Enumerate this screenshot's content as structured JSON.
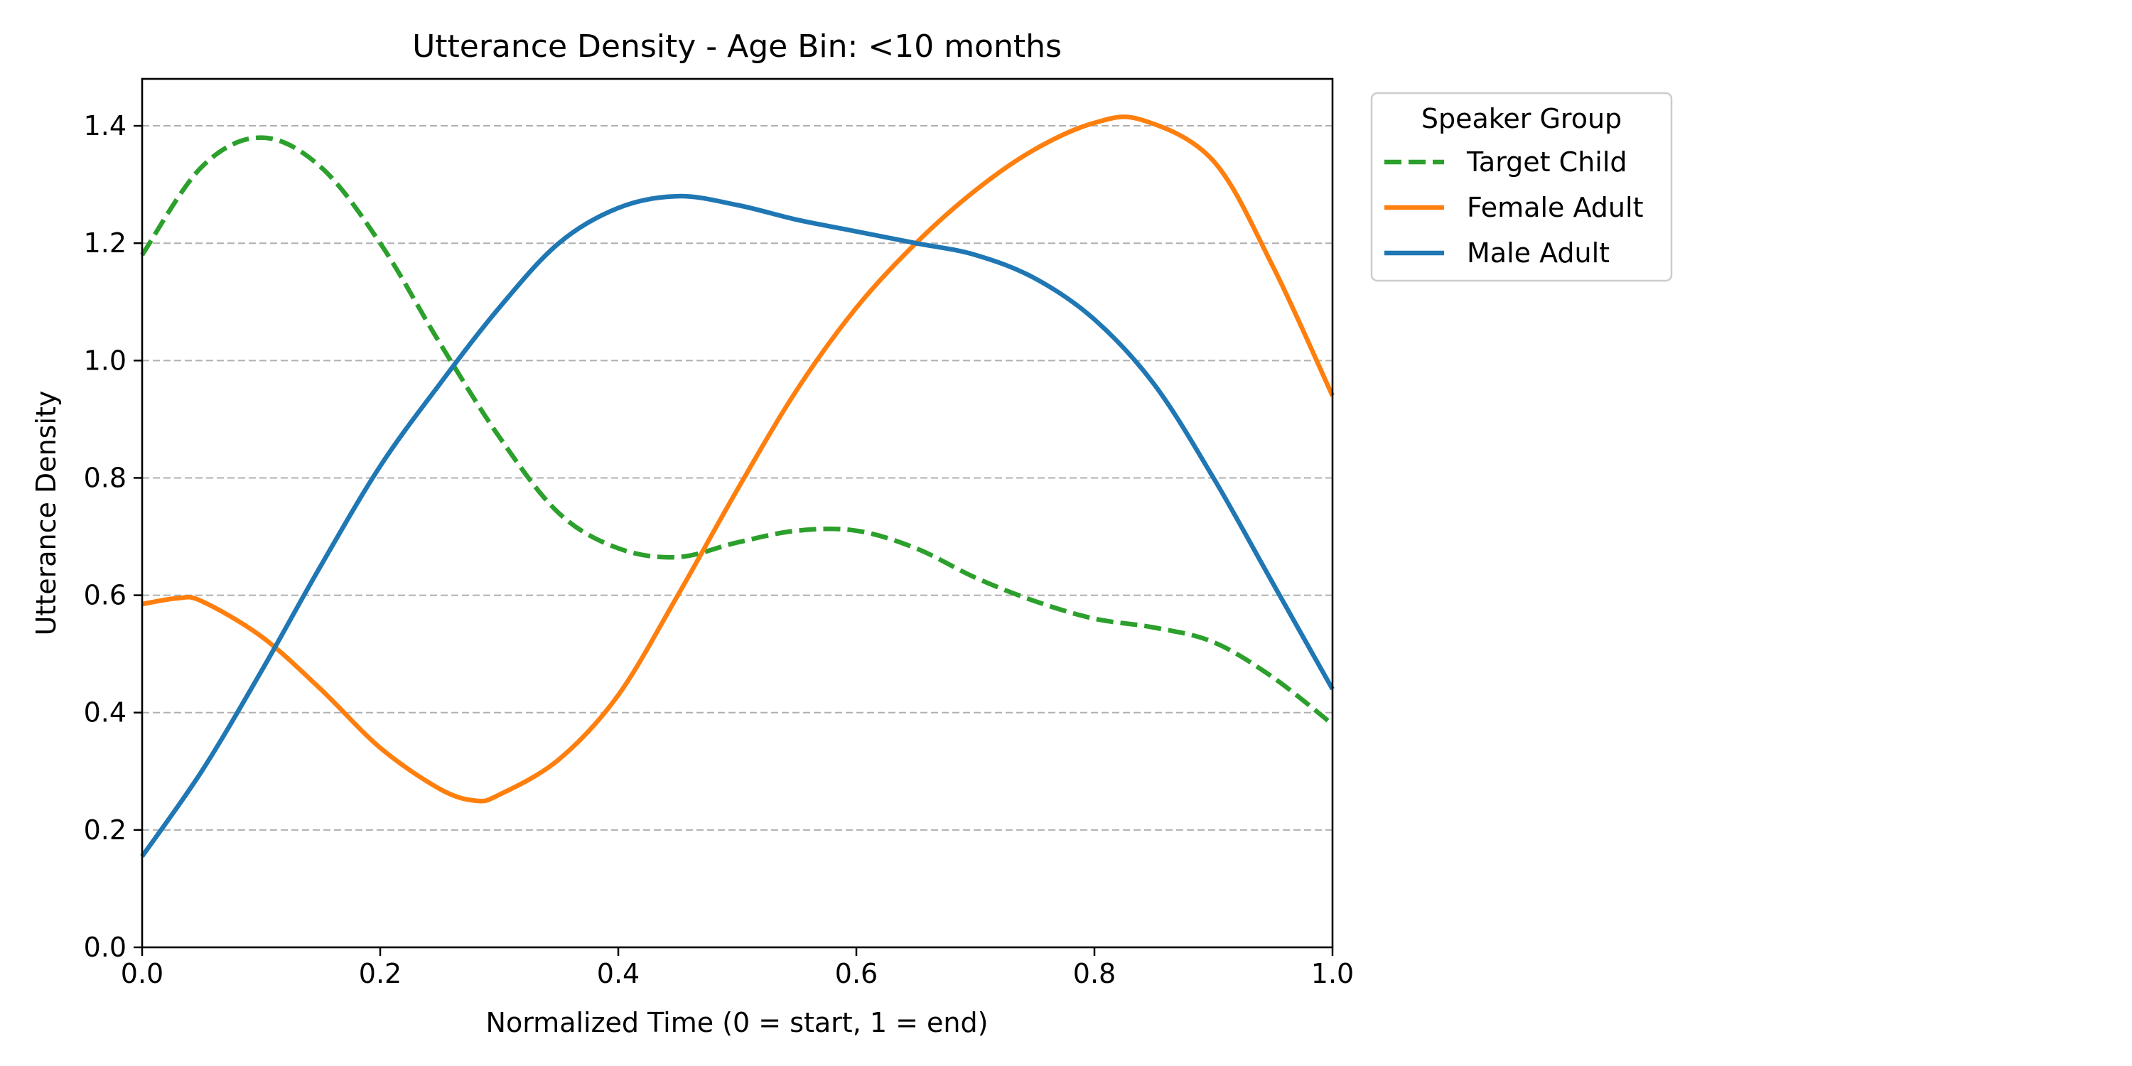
{
  "chart_data": {
    "type": "line",
    "title": "Utterance Density - Age Bin: <10 months",
    "xlabel": "Normalized Time (0 = start, 1 = end)",
    "ylabel": "Utterance Density",
    "xlim": [
      0,
      1
    ],
    "ylim": [
      0,
      1.48
    ],
    "xticks": [
      0.0,
      0.2,
      0.4,
      0.6,
      0.8,
      1.0
    ],
    "xtick_labels": [
      "0.0",
      "0.2",
      "0.4",
      "0.6",
      "0.8",
      "1.0"
    ],
    "yticks": [
      0.0,
      0.2,
      0.4,
      0.6,
      0.8,
      1.0,
      1.2,
      1.4
    ],
    "ytick_labels": [
      "0.0",
      "0.2",
      "0.4",
      "0.6",
      "0.8",
      "1.0",
      "1.2",
      "1.4"
    ],
    "grid": "horizontal dashed",
    "legend": {
      "title": "Speaker Group",
      "placement": "outside upper right"
    },
    "series": [
      {
        "name": "Target Child",
        "color": "#2ca02c",
        "style": "dashed",
        "x": [
          0.0,
          0.05,
          0.1,
          0.15,
          0.2,
          0.25,
          0.3,
          0.35,
          0.4,
          0.45,
          0.5,
          0.55,
          0.6,
          0.65,
          0.7,
          0.75,
          0.8,
          0.85,
          0.9,
          0.95,
          1.0
        ],
        "y": [
          1.18,
          1.33,
          1.38,
          1.33,
          1.2,
          1.03,
          0.87,
          0.74,
          0.68,
          0.665,
          0.69,
          0.71,
          0.71,
          0.68,
          0.63,
          0.59,
          0.56,
          0.545,
          0.52,
          0.46,
          0.38
        ]
      },
      {
        "name": "Female Adult",
        "color": "#ff7f0e",
        "style": "solid",
        "x": [
          0.0,
          0.03,
          0.05,
          0.1,
          0.15,
          0.2,
          0.25,
          0.28,
          0.3,
          0.35,
          0.4,
          0.45,
          0.5,
          0.55,
          0.6,
          0.65,
          0.7,
          0.75,
          0.8,
          0.84,
          0.9,
          0.95,
          1.0
        ],
        "y": [
          0.585,
          0.595,
          0.59,
          0.53,
          0.44,
          0.34,
          0.27,
          0.25,
          0.26,
          0.32,
          0.43,
          0.6,
          0.78,
          0.95,
          1.09,
          1.2,
          1.29,
          1.36,
          1.405,
          1.41,
          1.34,
          1.16,
          0.94
        ]
      },
      {
        "name": "Male Adult",
        "color": "#1f77b4",
        "style": "solid",
        "x": [
          0.0,
          0.05,
          0.1,
          0.15,
          0.2,
          0.25,
          0.3,
          0.35,
          0.4,
          0.45,
          0.5,
          0.55,
          0.6,
          0.65,
          0.7,
          0.75,
          0.8,
          0.85,
          0.9,
          0.95,
          1.0
        ],
        "y": [
          0.155,
          0.3,
          0.47,
          0.65,
          0.82,
          0.96,
          1.09,
          1.2,
          1.26,
          1.28,
          1.265,
          1.24,
          1.22,
          1.2,
          1.18,
          1.14,
          1.07,
          0.96,
          0.8,
          0.62,
          0.44
        ]
      }
    ]
  }
}
